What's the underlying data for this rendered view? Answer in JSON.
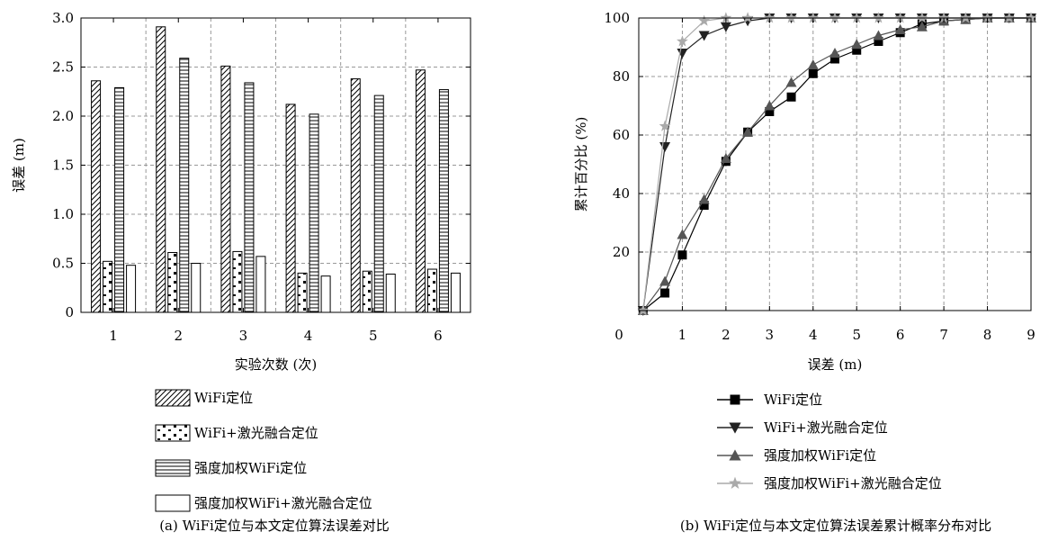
{
  "chart_data": [
    {
      "type": "bar",
      "caption": "(a) WiFi定位与本文定位算法误差对比",
      "xlabel": "实验次数 (次)",
      "ylabel": "误差 (m)",
      "ylim": [
        0,
        3.0
      ],
      "yticks": [
        "0",
        "0.5",
        "1.0",
        "1.5",
        "2.0",
        "2.5",
        "3.0"
      ],
      "categories": [
        "1",
        "2",
        "3",
        "4",
        "5",
        "6"
      ],
      "grid": true,
      "legend_position": "bottom",
      "series": [
        {
          "name": "WiFi定位",
          "pattern": "diagonal",
          "values": [
            2.36,
            2.91,
            2.51,
            2.12,
            2.38,
            2.47
          ]
        },
        {
          "name": "WiFi+激光融合定位",
          "pattern": "dots",
          "values": [
            0.52,
            0.61,
            0.62,
            0.4,
            0.42,
            0.44
          ]
        },
        {
          "name": "强度加权WiFi定位",
          "pattern": "horizontal",
          "values": [
            2.29,
            2.59,
            2.34,
            2.02,
            2.21,
            2.27
          ]
        },
        {
          "name": "强度加权WiFi+激光融合定位",
          "pattern": "none",
          "values": [
            0.48,
            0.5,
            0.57,
            0.37,
            0.39,
            0.4
          ]
        }
      ]
    },
    {
      "type": "line",
      "caption": "(b) WiFi定位与本文定位算法误差累计概率分布对比",
      "xlabel": "误差 (m)",
      "ylabel": "累计百分比 (%)",
      "xlim": [
        0,
        9
      ],
      "ylim": [
        0,
        100
      ],
      "xticks": [
        "0",
        "1",
        "2",
        "3",
        "4",
        "5",
        "6",
        "7",
        "8",
        "9"
      ],
      "yticks": [
        "20",
        "40",
        "60",
        "80",
        "100"
      ],
      "grid": true,
      "legend_position": "bottom",
      "series": [
        {
          "name": "WiFi定位",
          "marker": "square",
          "color": "#000000",
          "x": [
            0.1,
            0.6,
            1.0,
            1.5,
            2.0,
            2.5,
            3.0,
            3.5,
            4.0,
            4.5,
            5.0,
            5.5,
            6.0,
            6.5,
            7.0,
            7.5,
            8.0,
            8.5,
            9.0
          ],
          "y": [
            0,
            6,
            19,
            36,
            51,
            61,
            68,
            73,
            81,
            86,
            89,
            92,
            95,
            98,
            99,
            99.5,
            100,
            100,
            100
          ]
        },
        {
          "name": "WiFi+激光融合定位",
          "marker": "triangle-down",
          "color": "#222222",
          "x": [
            0.1,
            0.6,
            1.0,
            1.5,
            2.0,
            2.5,
            3.0,
            3.5,
            4.0,
            4.5,
            5.0,
            5.5,
            6.0,
            6.5,
            7.0,
            7.5,
            8.0,
            8.5,
            9.0
          ],
          "y": [
            0,
            56,
            88,
            94,
            97,
            99,
            100,
            100,
            100,
            100,
            100,
            100,
            100,
            100,
            100,
            100,
            100,
            100,
            100
          ]
        },
        {
          "name": "强度加权WiFi定位",
          "marker": "triangle-up",
          "color": "#555555",
          "x": [
            0.1,
            0.6,
            1.0,
            1.5,
            2.0,
            2.5,
            3.0,
            3.5,
            4.0,
            4.5,
            5.0,
            5.5,
            6.0,
            6.5,
            7.0,
            7.5,
            8.0,
            8.5,
            9.0
          ],
          "y": [
            0,
            10,
            26,
            38,
            52,
            61,
            70,
            78,
            84,
            88,
            91,
            94,
            96,
            97,
            99,
            99.5,
            100,
            100,
            100
          ]
        },
        {
          "name": "强度加权WiFi+激光融合定位",
          "marker": "star",
          "color": "#aaaaaa",
          "x": [
            0.1,
            0.6,
            1.0,
            1.5,
            2.0,
            2.5,
            3.0,
            3.5,
            4.0,
            4.5,
            5.0,
            5.5,
            6.0,
            6.5,
            7.0,
            7.5,
            8.0,
            8.5,
            9.0
          ],
          "y": [
            0,
            63,
            92,
            99,
            100,
            100,
            100,
            100,
            100,
            100,
            100,
            100,
            100,
            100,
            100,
            100,
            100,
            100,
            100
          ]
        }
      ]
    }
  ]
}
